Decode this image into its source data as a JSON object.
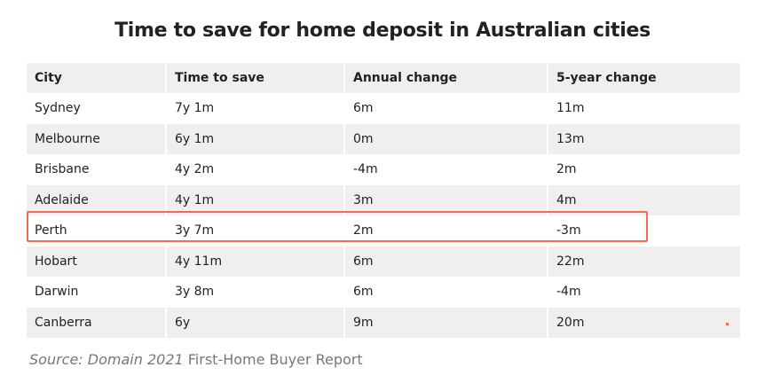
{
  "title": "Time to save for home deposit in Australian cities",
  "table": {
    "headers": [
      "City",
      "Time to save",
      "Annual change",
      "5-year change"
    ],
    "rows": [
      [
        "Sydney",
        "7y 1m",
        "6m",
        "11m"
      ],
      [
        "Melbourne",
        "6y 1m",
        "0m",
        "13m"
      ],
      [
        "Brisbane",
        "4y 2m",
        "-4m",
        "2m"
      ],
      [
        "Adelaide",
        "4y 1m",
        "3m",
        "4m"
      ],
      [
        "Perth",
        "3y 7m",
        "2m",
        "-3m"
      ],
      [
        "Hobart",
        "4y 11m",
        "6m",
        "22m"
      ],
      [
        "Darwin",
        "3y 8m",
        "6m",
        "-4m"
      ],
      [
        "Canberra",
        "6y",
        "9m",
        "20m"
      ]
    ],
    "highlighted_row": "Perth"
  },
  "source": {
    "italic_part": "Source: Domain 2021",
    "rest": "First-Home Buyer Report"
  },
  "colors": {
    "highlight": "#f26b52",
    "stripe": "#efefef",
    "source_text": "#777777"
  }
}
